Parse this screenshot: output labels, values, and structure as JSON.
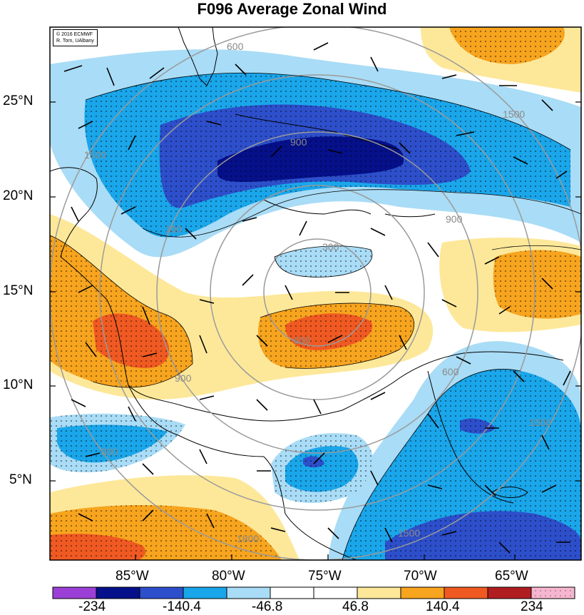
{
  "title": "F096 Average Zonal Wind",
  "credit": [
    "© 2016 ECMWF",
    "R. Torn, UAlbany"
  ],
  "lat_labels": [
    "25°N",
    "20°N",
    "15°N",
    "10°N",
    "5°N"
  ],
  "lon_labels": [
    "85°W",
    "80°W",
    "75°W",
    "70°W",
    "65°W"
  ],
  "contour_labels": [
    "900",
    "300",
    "600",
    "900",
    "1500",
    "1500",
    "900",
    "1500",
    "300",
    "600",
    "900",
    "1500",
    "600",
    "1800"
  ],
  "colorbar": {
    "labels": [
      "-234",
      "-140.4",
      "-46.8",
      "46.8",
      "140.4",
      "234"
    ],
    "colors": [
      "#9b3fd6",
      "#05108a",
      "#2d4fcb",
      "#1aa6ea",
      "#a9dcf6",
      "#ffffff",
      "#ffffff",
      "#fde89a",
      "#f7a41e",
      "#f05a22",
      "#b01e22",
      "#f7b6cf"
    ]
  }
}
